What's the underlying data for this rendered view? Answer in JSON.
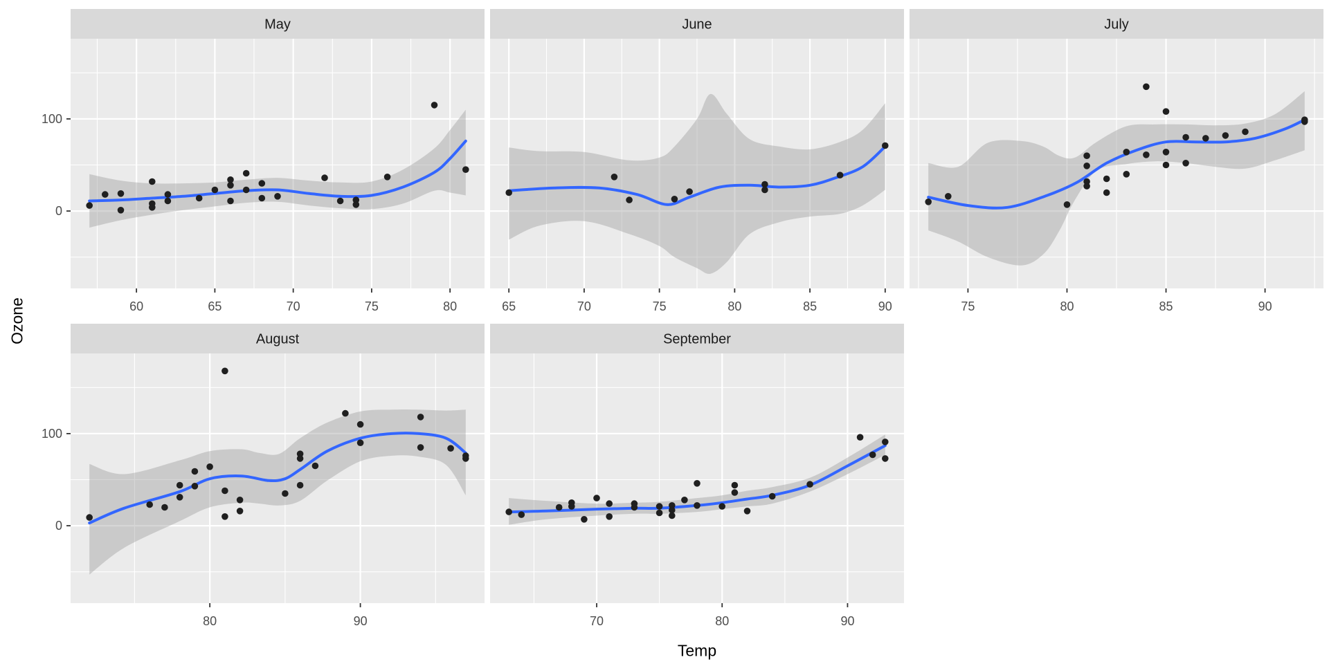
{
  "chart_data": {
    "type": "scatter",
    "title": "",
    "xlabel": "Temp",
    "ylabel": "Ozone",
    "grid": true,
    "legend": "none",
    "smoother": "loess with 95% confidence band",
    "y_domain": [
      -84,
      187
    ],
    "y_major_ticks": [
      100,
      0
    ],
    "y_minor_ticks": [
      150,
      50,
      -50
    ],
    "facets": [
      {
        "label": "May",
        "x_domain": [
          55.8,
          82.2
        ],
        "x_major_ticks": [
          60,
          65,
          70,
          75,
          80
        ],
        "x_minor_ticks": [
          57.5,
          62.5,
          67.5,
          72.5,
          77.5
        ],
        "points": [
          [
            67,
            41
          ],
          [
            72,
            36
          ],
          [
            74,
            12
          ],
          [
            62,
            18
          ],
          [
            66,
            28
          ],
          [
            65,
            23
          ],
          [
            59,
            19
          ],
          [
            61,
            8
          ],
          [
            74,
            7
          ],
          [
            69,
            16
          ],
          [
            66,
            11
          ],
          [
            68,
            14
          ],
          [
            58,
            18
          ],
          [
            64,
            14
          ],
          [
            66,
            34
          ],
          [
            57,
            6
          ],
          [
            68,
            30
          ],
          [
            62,
            11
          ],
          [
            59,
            1
          ],
          [
            73,
            11
          ],
          [
            61,
            4
          ],
          [
            61,
            32
          ],
          [
            67,
            23
          ],
          [
            81,
            45
          ],
          [
            79,
            115
          ],
          [
            76,
            37
          ]
        ],
        "line": {
          "x": [
            57,
            59,
            61,
            63,
            65,
            67,
            69,
            71,
            73,
            75,
            77,
            79,
            80,
            81
          ],
          "y": [
            11,
            12,
            14,
            16,
            19,
            22,
            23,
            19,
            16,
            17,
            26,
            42,
            57,
            76
          ]
        },
        "band": {
          "x": [
            57,
            59,
            61,
            63,
            65,
            67,
            69,
            71,
            73,
            75,
            77,
            79,
            80,
            81
          ],
          "upper": [
            40,
            33,
            30,
            30,
            31,
            34,
            36,
            33,
            31,
            32,
            45,
            68,
            88,
            110
          ],
          "lower": [
            -18,
            -10,
            -4,
            1,
            5,
            9,
            10,
            6,
            3,
            2,
            8,
            22,
            20,
            17
          ]
        }
      },
      {
        "label": "June",
        "x_domain": [
          63.75,
          91.25
        ],
        "x_major_ticks": [
          65,
          70,
          75,
          80,
          85,
          90
        ],
        "x_minor_ticks": [
          67.5,
          72.5,
          77.5,
          82.5,
          87.5
        ],
        "points": [
          [
            65,
            20
          ],
          [
            72,
            37
          ],
          [
            73,
            12
          ],
          [
            76,
            13
          ],
          [
            77,
            21
          ],
          [
            82,
            29
          ],
          [
            82,
            23
          ],
          [
            87,
            39
          ],
          [
            90,
            71
          ]
        ],
        "line": {
          "x": [
            65,
            68,
            71,
            73.5,
            75.5,
            77,
            79,
            81,
            83,
            85,
            86.7,
            88.5,
            90
          ],
          "y": [
            22,
            25,
            25,
            18,
            7,
            15,
            26,
            28,
            26,
            28,
            36,
            48,
            70
          ]
        },
        "band": {
          "x": [
            65,
            67,
            70,
            73,
            75,
            76,
            77.5,
            78.4,
            79.5,
            81,
            83,
            85,
            87,
            88.5,
            90
          ],
          "upper": [
            69,
            65,
            64,
            55,
            58,
            70,
            100,
            127,
            105,
            78,
            70,
            67,
            75,
            88,
            117
          ],
          "lower": [
            -31,
            -16,
            -11,
            -25,
            -38,
            -50,
            -62,
            -68,
            -55,
            -25,
            -12,
            -6,
            -3,
            6,
            23
          ]
        }
      },
      {
        "label": "July",
        "x_domain": [
          72.05,
          92.95
        ],
        "x_major_ticks": [
          75,
          80,
          85,
          90
        ],
        "x_minor_ticks": [
          72.5,
          77.5,
          82.5,
          87.5,
          92.5
        ],
        "points": [
          [
            73,
            10
          ],
          [
            74,
            16
          ],
          [
            80,
            7
          ],
          [
            81,
            60
          ],
          [
            81,
            49
          ],
          [
            81,
            32
          ],
          [
            81,
            27
          ],
          [
            82,
            35
          ],
          [
            82,
            20
          ],
          [
            83,
            64
          ],
          [
            83,
            40
          ],
          [
            84,
            135
          ],
          [
            84,
            61
          ],
          [
            85,
            108
          ],
          [
            85,
            64
          ],
          [
            85,
            50
          ],
          [
            86,
            80
          ],
          [
            86,
            52
          ],
          [
            87,
            79
          ],
          [
            88,
            82
          ],
          [
            89,
            86
          ],
          [
            92,
            97
          ],
          [
            92,
            99
          ]
        ],
        "line": {
          "x": [
            73,
            75,
            77,
            79,
            80.5,
            82,
            83.5,
            85,
            86.5,
            88,
            89.5,
            91,
            92
          ],
          "y": [
            15,
            6,
            4,
            17,
            31,
            52,
            66,
            75,
            75,
            75,
            79,
            89,
            99
          ]
        },
        "band": {
          "x": [
            73,
            74.5,
            76,
            77.7,
            78.8,
            79.6,
            80.4,
            81.5,
            83,
            84.5,
            86,
            87.5,
            89,
            90.5,
            92
          ],
          "upper": [
            52,
            48,
            74,
            76,
            70,
            60,
            58,
            75,
            92,
            94,
            94,
            93,
            95,
            105,
            130
          ],
          "lower": [
            -21,
            -33,
            -50,
            -59,
            -47,
            -22,
            12,
            44,
            51,
            54,
            52,
            48,
            46,
            55,
            66
          ]
        }
      },
      {
        "label": "August",
        "x_domain": [
          70.75,
          98.25
        ],
        "x_major_ticks": [
          80,
          90
        ],
        "x_minor_ticks": [
          75,
          85,
          95
        ],
        "points": [
          [
            72,
            9
          ],
          [
            76,
            23
          ],
          [
            77,
            20
          ],
          [
            78,
            31
          ],
          [
            78,
            44
          ],
          [
            79,
            59
          ],
          [
            79,
            43
          ],
          [
            80,
            64
          ],
          [
            81,
            168
          ],
          [
            81,
            10
          ],
          [
            81,
            38
          ],
          [
            82,
            28
          ],
          [
            82,
            16
          ],
          [
            85,
            35
          ],
          [
            86,
            44
          ],
          [
            86,
            78
          ],
          [
            86,
            73
          ],
          [
            87,
            65
          ],
          [
            89,
            122
          ],
          [
            90,
            110
          ],
          [
            90,
            90
          ],
          [
            94,
            118
          ],
          [
            94,
            85
          ],
          [
            96,
            84
          ],
          [
            97,
            76
          ],
          [
            97,
            73
          ]
        ],
        "line": {
          "x": [
            72,
            74.3,
            78,
            80,
            82.1,
            83.9,
            85,
            86,
            87.8,
            90,
            92.1,
            93.9,
            95.7,
            97
          ],
          "y": [
            3,
            19,
            37,
            51,
            54,
            49,
            51,
            61,
            81,
            95,
            100,
            100,
            95,
            79
          ]
        },
        "band": {
          "x": [
            72,
            74.3,
            78,
            80,
            82.1,
            83.3,
            84.6,
            86,
            87.8,
            90,
            92.1,
            93.9,
            95.7,
            97
          ],
          "upper": [
            67,
            56,
            71,
            81,
            83,
            79,
            78,
            95,
            112,
            124,
            126,
            126,
            125,
            126
          ],
          "lower": [
            -53,
            -24,
            5,
            20,
            25,
            24,
            22,
            27,
            49,
            70,
            76,
            75,
            66,
            33
          ]
        }
      },
      {
        "label": "September",
        "x_domain": [
          61.5,
          94.5
        ],
        "x_major_ticks": [
          70,
          80,
          90
        ],
        "x_minor_ticks": [
          65,
          75,
          85
        ],
        "points": [
          [
            63,
            15
          ],
          [
            64,
            12
          ],
          [
            67,
            20
          ],
          [
            68,
            25
          ],
          [
            68,
            21
          ],
          [
            69,
            7
          ],
          [
            70,
            30
          ],
          [
            71,
            24
          ],
          [
            71,
            10
          ],
          [
            73,
            24
          ],
          [
            73,
            20
          ],
          [
            75,
            21
          ],
          [
            75,
            14
          ],
          [
            76,
            22
          ],
          [
            76,
            17
          ],
          [
            76,
            11
          ],
          [
            77,
            28
          ],
          [
            78,
            46
          ],
          [
            78,
            22
          ],
          [
            80,
            21
          ],
          [
            81,
            44
          ],
          [
            81,
            36
          ],
          [
            82,
            16
          ],
          [
            84,
            32
          ],
          [
            87,
            45
          ],
          [
            91,
            96
          ],
          [
            92,
            77
          ],
          [
            93,
            91
          ],
          [
            93,
            73
          ]
        ],
        "line": {
          "x": [
            63,
            66,
            70,
            73,
            75,
            78,
            80,
            82,
            84,
            87,
            90,
            93
          ],
          "y": [
            15,
            16,
            18,
            19,
            19,
            22,
            25,
            29,
            33,
            44,
            65,
            87
          ]
        },
        "band": {
          "x": [
            63,
            66,
            70,
            73,
            75,
            78,
            80,
            82,
            84,
            87,
            90,
            93
          ],
          "upper": [
            30,
            27,
            24,
            25,
            26,
            30,
            33,
            38,
            42,
            52,
            74,
            99
          ],
          "lower": [
            1,
            7,
            11,
            13,
            13,
            15,
            18,
            21,
            24,
            37,
            56,
            77
          ]
        }
      }
    ]
  },
  "style": {
    "panel_bg": "#EBEBEB",
    "strip_bg": "#D9D9D9",
    "strip_text": "#1A1A1A",
    "grid_color": "#FFFFFF",
    "point_color": "#1F1F1F",
    "smooth_line_color": "#3366FF",
    "band_fill": "rgba(153,153,153,0.4)",
    "tick_mark_color": "#333333",
    "tick_label_color": "#4D4D4D",
    "axis_title_color": "#000000"
  }
}
